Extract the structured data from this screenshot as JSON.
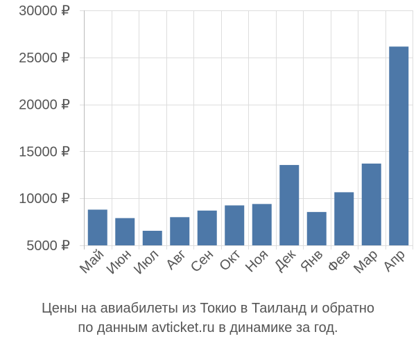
{
  "chart_data": {
    "type": "bar",
    "categories": [
      "Май",
      "Июн",
      "Июл",
      "Авг",
      "Сен",
      "Окт",
      "Ноя",
      "Дек",
      "Янв",
      "Фев",
      "Мар",
      "Апр"
    ],
    "values": [
      8800,
      7900,
      6550,
      8000,
      8700,
      9250,
      9400,
      13550,
      8550,
      10650,
      13700,
      26150
    ],
    "ylim": [
      5000,
      30000
    ],
    "yticks": [
      5000,
      10000,
      15000,
      20000,
      25000,
      30000
    ],
    "ytick_labels": [
      "5000 ₽",
      "10000 ₽",
      "15000 ₽",
      "20000 ₽",
      "25000 ₽",
      "30000 ₽"
    ],
    "grid": true,
    "bar_color": "#4d78a8",
    "grid_color": "#dddddd",
    "text_color": "#555555"
  },
  "caption": {
    "line1": "Цены на авиабилеты из Токио в Таиланд и обратно",
    "line2": "по данным avticket.ru в динамике за год."
  }
}
